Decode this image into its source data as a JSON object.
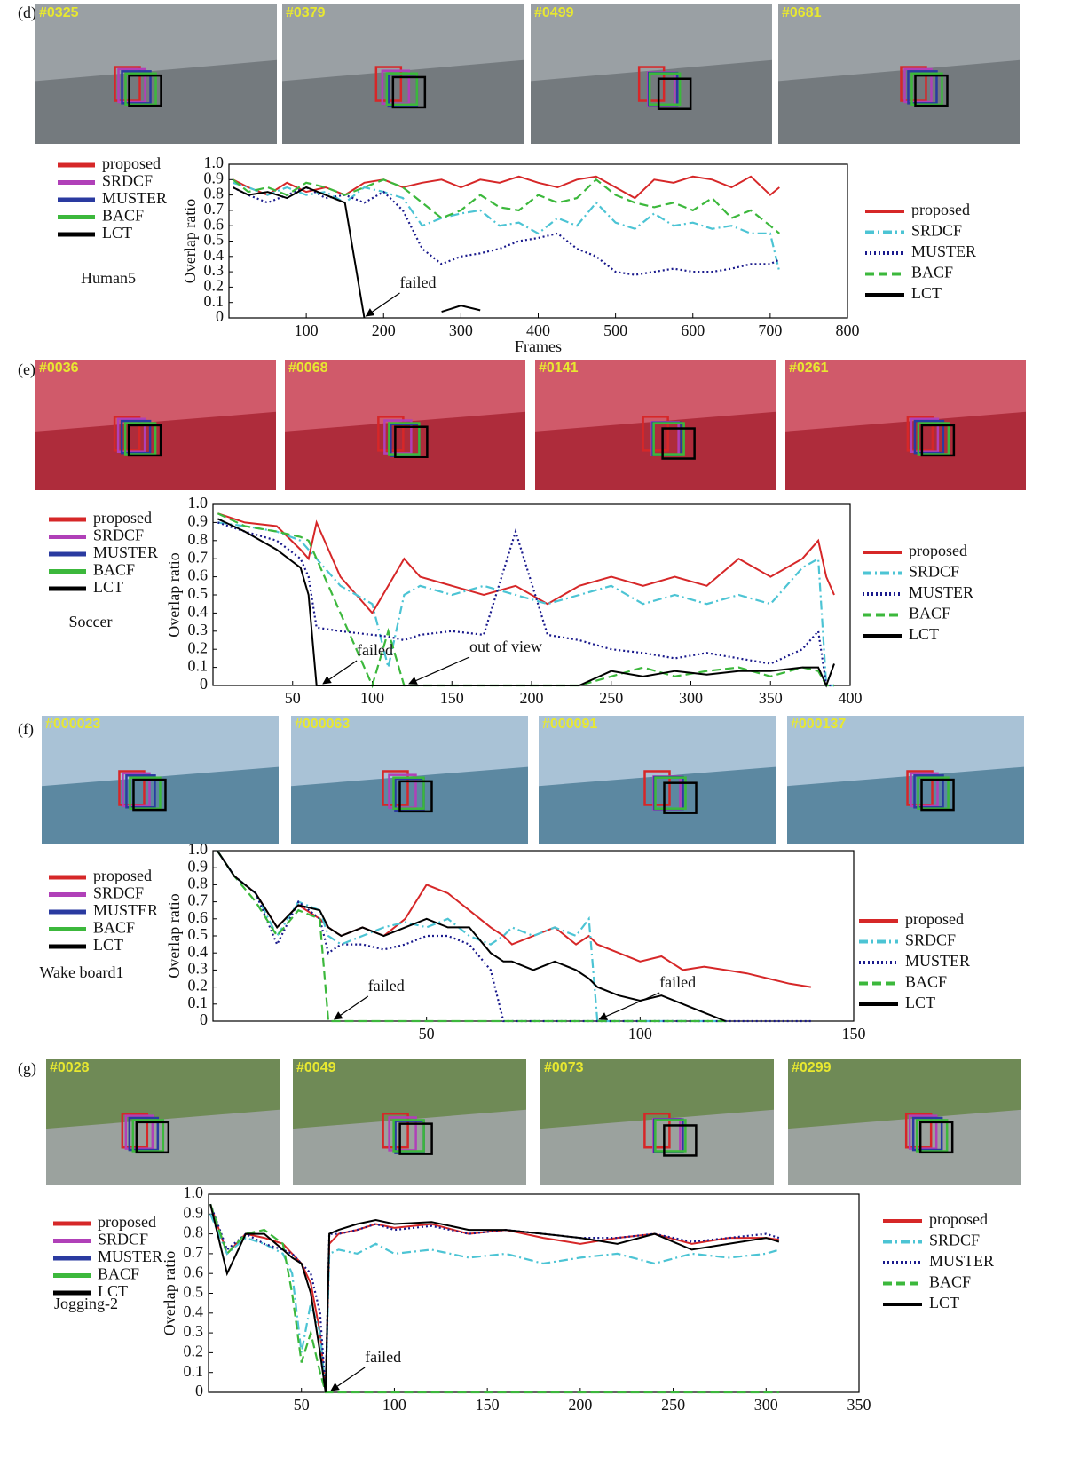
{
  "chart_data": [
    {
      "type": "line",
      "panel_label": "(d)",
      "frames": [
        "#0325",
        "#0379",
        "#0499",
        "#0681"
      ],
      "sequence": "Human5",
      "y_label": "Overlap ratio",
      "x_label": "Frames",
      "xlim": [
        0,
        800
      ],
      "xticks": [
        100,
        200,
        300,
        400,
        500,
        600,
        700,
        800
      ],
      "ylim": [
        0,
        1
      ],
      "yticks": [
        0,
        0.1,
        0.2,
        0.3,
        0.4,
        0.5,
        0.6,
        0.7,
        0.8,
        0.9,
        {
          "value": 1,
          "label": "1.0"
        }
      ],
      "x": [
        5,
        25,
        50,
        75,
        100,
        125,
        150,
        175,
        200,
        225,
        250,
        275,
        300,
        325,
        350,
        375,
        400,
        425,
        450,
        475,
        500,
        525,
        550,
        575,
        600,
        625,
        650,
        675,
        700,
        712
      ],
      "series": [
        {
          "name": "proposed",
          "color": "#d62728",
          "box_color": "#d62728",
          "dash": "solid",
          "values": [
            0.9,
            0.85,
            0.8,
            0.88,
            0.82,
            0.85,
            0.8,
            0.88,
            0.9,
            0.85,
            0.88,
            0.9,
            0.85,
            0.9,
            0.88,
            0.92,
            0.88,
            0.85,
            0.9,
            0.92,
            0.85,
            0.78,
            0.9,
            0.88,
            0.92,
            0.9,
            0.85,
            0.92,
            0.8,
            0.85
          ]
        },
        {
          "name": "SRDCF",
          "color": "#4cc4d4",
          "box_color": "#b040b8",
          "dash": "dashdot",
          "values": [
            0.88,
            0.85,
            0.8,
            0.85,
            0.8,
            0.82,
            0.75,
            0.85,
            0.82,
            0.78,
            0.6,
            0.65,
            0.68,
            0.7,
            0.6,
            0.62,
            0.55,
            0.65,
            0.6,
            0.75,
            0.62,
            0.58,
            0.68,
            0.6,
            0.62,
            0.58,
            0.6,
            0.55,
            0.55,
            0.3
          ]
        },
        {
          "name": "MUSTER",
          "color": "#1a1a8c",
          "box_color": "#2a3aa0",
          "dash": "dotted",
          "values": [
            0.85,
            0.8,
            0.75,
            0.8,
            0.85,
            0.78,
            0.8,
            0.75,
            0.82,
            0.7,
            0.45,
            0.35,
            0.4,
            0.42,
            0.45,
            0.5,
            0.52,
            0.55,
            0.45,
            0.4,
            0.3,
            0.28,
            0.3,
            0.32,
            0.3,
            0.3,
            0.32,
            0.35,
            0.35,
            0.38
          ]
        },
        {
          "name": "BACF",
          "color": "#3cb83c",
          "box_color": "#3cb83c",
          "dash": "dashed",
          "values": [
            0.9,
            0.82,
            0.85,
            0.8,
            0.88,
            0.85,
            0.8,
            0.85,
            0.9,
            0.85,
            0.75,
            0.65,
            0.7,
            0.8,
            0.72,
            0.7,
            0.8,
            0.75,
            0.78,
            0.9,
            0.8,
            0.75,
            0.72,
            0.75,
            0.7,
            0.78,
            0.65,
            0.7,
            0.6,
            0.55
          ]
        },
        {
          "name": "LCT",
          "color": "#000000",
          "box_color": "#000000",
          "dash": "solid",
          "values": [
            0.85,
            0.8,
            0.82,
            0.78,
            0.85,
            0.8,
            0.75,
            0,
            null,
            null,
            null,
            0.04,
            0.08,
            0.05,
            null,
            null,
            null,
            null,
            null,
            null,
            null,
            null,
            null,
            null,
            null,
            null,
            null,
            null,
            null,
            null
          ]
        }
      ],
      "annotations": [
        {
          "text": "failed",
          "x": 175,
          "y": 0
        }
      ]
    },
    {
      "type": "line",
      "panel_label": "(e)",
      "frames": [
        "#0036",
        "#0068",
        "#0141",
        "#0261"
      ],
      "sequence": "Soccer",
      "y_label": "Overlap ratio",
      "xlim": [
        0,
        400
      ],
      "xticks": [
        50,
        100,
        150,
        200,
        250,
        300,
        350,
        400
      ],
      "ylim": [
        0,
        1
      ],
      "yticks": [
        0,
        0.1,
        0.2,
        0.3,
        0.4,
        0.5,
        0.6,
        0.7,
        0.8,
        0.9,
        {
          "value": 1,
          "label": "1.0"
        }
      ],
      "x": [
        3,
        20,
        40,
        55,
        60,
        65,
        80,
        100,
        110,
        120,
        130,
        150,
        170,
        190,
        210,
        230,
        250,
        270,
        290,
        310,
        330,
        350,
        370,
        380,
        385,
        390
      ],
      "series": [
        {
          "name": "proposed",
          "color": "#d62728",
          "box_color": "#d62728",
          "dash": "solid",
          "values": [
            0.95,
            0.9,
            0.88,
            0.75,
            0.7,
            0.9,
            0.6,
            0.4,
            0.55,
            0.7,
            0.6,
            0.55,
            0.5,
            0.55,
            0.45,
            0.55,
            0.6,
            0.55,
            0.6,
            0.55,
            0.7,
            0.6,
            0.7,
            0.8,
            0.6,
            0.5
          ]
        },
        {
          "name": "SRDCF",
          "color": "#4cc4d4",
          "box_color": "#b040b8",
          "dash": "dashdot",
          "values": [
            0.9,
            0.88,
            0.85,
            0.8,
            0.75,
            0.7,
            0.55,
            0.45,
            0.1,
            0.5,
            0.55,
            0.5,
            0.55,
            0.5,
            0.45,
            0.5,
            0.55,
            0.45,
            0.5,
            0.45,
            0.5,
            0.45,
            0.65,
            0.7,
            0,
            0
          ]
        },
        {
          "name": "MUSTER",
          "color": "#1a1a8c",
          "box_color": "#2a3aa0",
          "dash": "dotted",
          "values": [
            0.9,
            0.85,
            0.8,
            0.7,
            0.6,
            0.32,
            0.3,
            0.28,
            0.27,
            0.25,
            0.28,
            0.3,
            0.28,
            0.85,
            0.28,
            0.25,
            0.2,
            0.18,
            0.15,
            0.18,
            0.15,
            0.12,
            0.2,
            0.3,
            0,
            0
          ]
        },
        {
          "name": "BACF",
          "color": "#3cb83c",
          "box_color": "#3cb83c",
          "dash": "dashed",
          "values": [
            0.95,
            0.88,
            0.85,
            0.82,
            0.8,
            0.7,
            0.4,
            0,
            0.3,
            0,
            0,
            0,
            0,
            0,
            0,
            0,
            0.05,
            0.1,
            0.05,
            0.08,
            0.1,
            0.05,
            0.1,
            0.08,
            0,
            0
          ]
        },
        {
          "name": "LCT",
          "color": "#000000",
          "box_color": "#000000",
          "dash": "solid",
          "values": [
            0.92,
            0.85,
            0.75,
            0.65,
            0.5,
            0,
            0,
            0,
            0,
            0,
            0,
            0,
            0,
            0,
            0,
            0,
            0.08,
            0.05,
            0.08,
            0.06,
            0.08,
            0.08,
            0.1,
            0.1,
            0,
            0.12
          ]
        }
      ],
      "annotations": [
        {
          "text": "failed",
          "x": 68,
          "y": 0
        },
        {
          "text": "out of view",
          "x": 122,
          "y": 0
        }
      ]
    },
    {
      "type": "line",
      "panel_label": "(f)",
      "frames": [
        "#000023",
        "#000063",
        "#000091",
        "#000137"
      ],
      "sequence": "Wake board1",
      "y_label": "Overlap ratio",
      "xlim": [
        0,
        150
      ],
      "xticks": [
        50,
        100,
        150
      ],
      "ylim": [
        0,
        1
      ],
      "yticks": [
        0,
        0.1,
        0.2,
        0.3,
        0.4,
        0.5,
        0.6,
        0.7,
        0.8,
        0.9,
        {
          "value": 1,
          "label": "1.0"
        }
      ],
      "x": [
        1,
        5,
        10,
        15,
        20,
        25,
        27,
        30,
        35,
        40,
        45,
        50,
        55,
        60,
        65,
        68,
        70,
        75,
        80,
        85,
        88,
        90,
        95,
        100,
        105,
        110,
        115,
        120,
        125,
        130,
        135,
        140
      ],
      "series": [
        {
          "name": "proposed",
          "color": "#d62728",
          "box_color": "#d62728",
          "dash": "solid",
          "values": [
            1,
            0.85,
            0.75,
            0.55,
            0.68,
            0.6,
            0.55,
            0.5,
            0.55,
            0.5,
            0.6,
            0.8,
            0.75,
            0.65,
            0.55,
            0.5,
            0.45,
            0.5,
            0.55,
            0.45,
            0.5,
            0.45,
            0.4,
            0.35,
            0.38,
            0.3,
            0.32,
            0.3,
            0.28,
            0.25,
            0.22,
            0.2
          ]
        },
        {
          "name": "SRDCF",
          "color": "#4cc4d4",
          "box_color": "#b040b8",
          "dash": "dashdot",
          "values": [
            1,
            0.85,
            0.75,
            0.5,
            0.7,
            0.65,
            0.5,
            0.45,
            0.5,
            0.55,
            0.58,
            0.55,
            0.6,
            0.5,
            0.45,
            0.5,
            0.55,
            0.5,
            0.55,
            0.5,
            0.6,
            0,
            0,
            0,
            0,
            0,
            0,
            0,
            null,
            null,
            null,
            null
          ]
        },
        {
          "name": "MUSTER",
          "color": "#1a1a8c",
          "box_color": "#2a3aa0",
          "dash": "dotted",
          "values": [
            1,
            0.85,
            0.75,
            0.45,
            0.7,
            0.6,
            0.4,
            0.45,
            0.45,
            0.42,
            0.45,
            0.5,
            0.5,
            0.45,
            0.3,
            0,
            0,
            0,
            0,
            0,
            0,
            0,
            0,
            0,
            0,
            0,
            0,
            0,
            0,
            0,
            0,
            0
          ]
        },
        {
          "name": "BACF",
          "color": "#3cb83c",
          "box_color": "#3cb83c",
          "dash": "dashed",
          "values": [
            1,
            0.85,
            0.7,
            0.5,
            0.65,
            0.6,
            0,
            0,
            0,
            0,
            0,
            0,
            0,
            0,
            0,
            0,
            0,
            0,
            0,
            0,
            0,
            0,
            0,
            0,
            0,
            0,
            0,
            0,
            null,
            null,
            null,
            null
          ]
        },
        {
          "name": "LCT",
          "color": "#000000",
          "box_color": "#000000",
          "dash": "solid",
          "values": [
            1,
            0.85,
            0.75,
            0.55,
            0.68,
            0.65,
            0.55,
            0.5,
            0.55,
            0.5,
            0.55,
            0.6,
            0.55,
            0.55,
            0.4,
            0.35,
            0.35,
            0.3,
            0.35,
            0.3,
            0.25,
            0.2,
            0.15,
            0.12,
            0.15,
            0.1,
            0.05,
            0,
            null,
            null,
            null,
            null
          ]
        }
      ],
      "annotations": [
        {
          "text": "failed",
          "x": 28,
          "y": 0
        },
        {
          "text": "failed",
          "x": 90,
          "y": 0
        }
      ]
    },
    {
      "type": "line",
      "panel_label": "(g)",
      "frames": [
        "#0028",
        "#0049",
        "#0073",
        "#0299"
      ],
      "sequence": "Jogging-2",
      "y_label": "Overlap ratio",
      "xlim": [
        0,
        350
      ],
      "xticks": [
        50,
        100,
        150,
        200,
        250,
        300,
        350
      ],
      "ylim": [
        0,
        1
      ],
      "yticks": [
        0,
        0.1,
        0.2,
        0.3,
        0.4,
        0.5,
        0.6,
        0.7,
        0.8,
        0.9,
        {
          "value": 1,
          "label": "1.0"
        }
      ],
      "x": [
        1,
        10,
        20,
        30,
        40,
        45,
        50,
        55,
        60,
        63,
        65,
        70,
        80,
        90,
        100,
        120,
        140,
        160,
        180,
        200,
        220,
        240,
        260,
        280,
        300,
        307
      ],
      "series": [
        {
          "name": "proposed",
          "color": "#d62728",
          "box_color": "#d62728",
          "dash": "solid",
          "values": [
            0.95,
            0.7,
            0.8,
            0.78,
            0.75,
            0.7,
            0.65,
            0.55,
            0.3,
            0,
            0.75,
            0.8,
            0.82,
            0.85,
            0.83,
            0.85,
            0.8,
            0.82,
            0.78,
            0.75,
            0.78,
            0.8,
            0.75,
            0.78,
            0.78,
            0.77
          ]
        },
        {
          "name": "SRDCF",
          "color": "#4cc4d4",
          "box_color": "#b040b8",
          "dash": "dashdot",
          "values": [
            0.9,
            0.7,
            0.78,
            0.75,
            0.7,
            0.6,
            0.2,
            0.45,
            0.3,
            0,
            0.7,
            0.72,
            0.7,
            0.75,
            0.7,
            0.72,
            0.68,
            0.7,
            0.65,
            0.68,
            0.7,
            0.65,
            0.7,
            0.68,
            0.7,
            0.72
          ]
        },
        {
          "name": "MUSTER",
          "color": "#1a1a8c",
          "box_color": "#2a3aa0",
          "dash": "dotted",
          "values": [
            0.95,
            0.72,
            0.8,
            0.75,
            0.72,
            0.7,
            0.65,
            0.6,
            0.4,
            0,
            0.8,
            0.8,
            0.82,
            0.85,
            0.82,
            0.84,
            0.8,
            0.82,
            0.8,
            0.78,
            0.78,
            0.8,
            0.76,
            0.78,
            0.8,
            0.78
          ]
        },
        {
          "name": "BACF",
          "color": "#3cb83c",
          "box_color": "#3cb83c",
          "dash": "dashed",
          "values": [
            0.95,
            0.7,
            0.8,
            0.82,
            0.75,
            0.5,
            0.15,
            0.3,
            0.1,
            0,
            0,
            0,
            0,
            0,
            0,
            0,
            0,
            0,
            0,
            0,
            0,
            0,
            0,
            0,
            0,
            0
          ]
        },
        {
          "name": "LCT",
          "color": "#000000",
          "box_color": "#000000",
          "dash": "solid",
          "values": [
            0.95,
            0.6,
            0.8,
            0.8,
            0.72,
            0.68,
            0.65,
            0.5,
            0.2,
            0,
            0.8,
            0.82,
            0.85,
            0.87,
            0.85,
            0.86,
            0.82,
            0.82,
            0.8,
            0.78,
            0.75,
            0.8,
            0.72,
            0.75,
            0.78,
            0.76
          ]
        }
      ],
      "annotations": [
        {
          "text": "failed",
          "x": 65,
          "y": 0
        }
      ]
    }
  ]
}
